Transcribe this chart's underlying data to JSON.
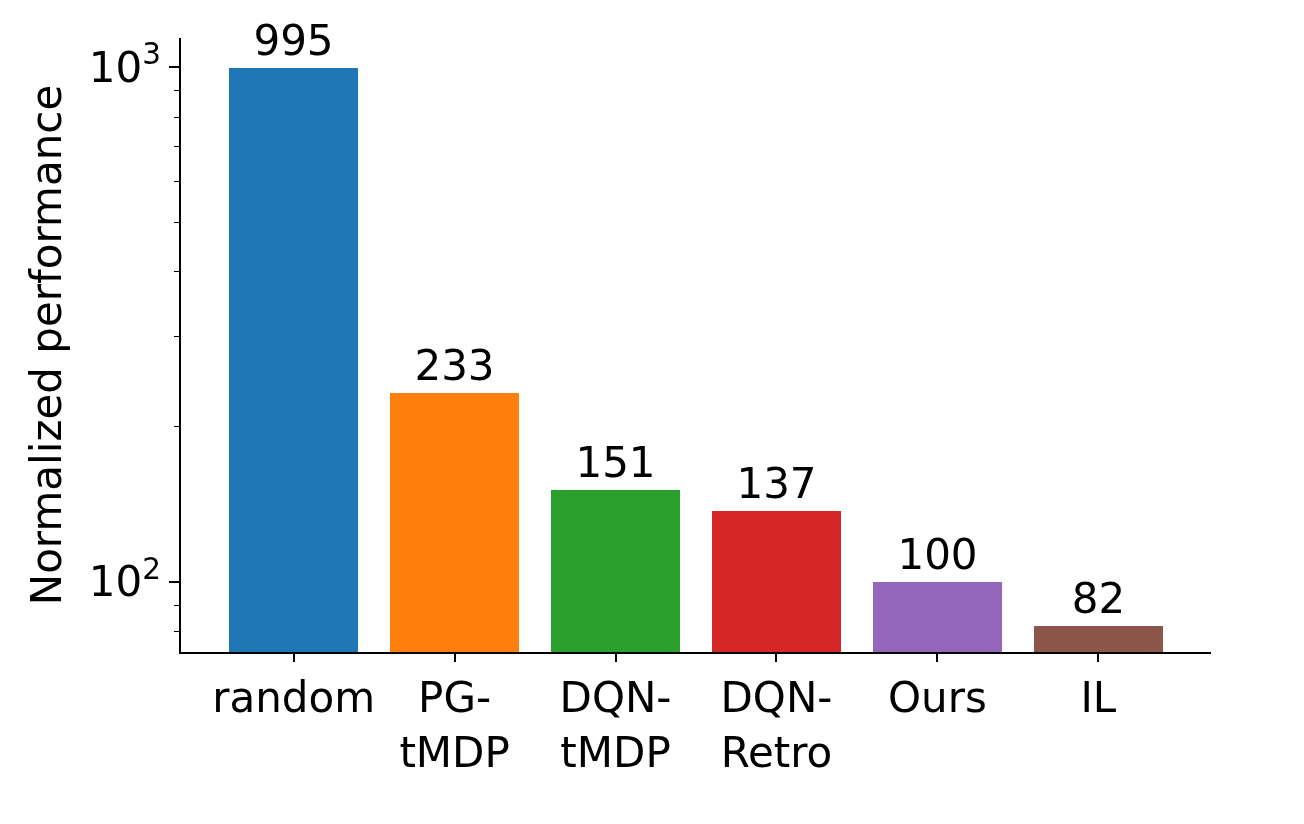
{
  "chart_data": {
    "type": "bar",
    "ylabel": "Normalized performance",
    "categories": [
      "random",
      "PG-\ntMDP",
      "DQN-\ntMDP",
      "DQN-\nRetro",
      "Ours",
      "IL"
    ],
    "values": [
      995,
      233,
      151,
      137,
      100,
      82
    ],
    "colors": [
      "#1f77b4",
      "#ff7f0e",
      "#2ca02c",
      "#d62728",
      "#9467bd",
      "#8c564b"
    ],
    "log": true,
    "ylim": [
      73,
      1140
    ],
    "yticks": [
      {
        "value": 80,
        "label": null
      },
      {
        "value": 90,
        "label": null
      },
      {
        "value": 100,
        "label": "10$^{2}$"
      },
      {
        "value": 200,
        "label": null
      },
      {
        "value": 300,
        "label": null
      },
      {
        "value": 400,
        "label": null
      },
      {
        "value": 500,
        "label": null
      },
      {
        "value": 600,
        "label": null
      },
      {
        "value": 700,
        "label": null
      },
      {
        "value": 800,
        "label": null
      },
      {
        "value": 900,
        "label": null
      },
      {
        "value": 1000,
        "label": "10$^{3}$"
      }
    ],
    "data_labels": true
  }
}
